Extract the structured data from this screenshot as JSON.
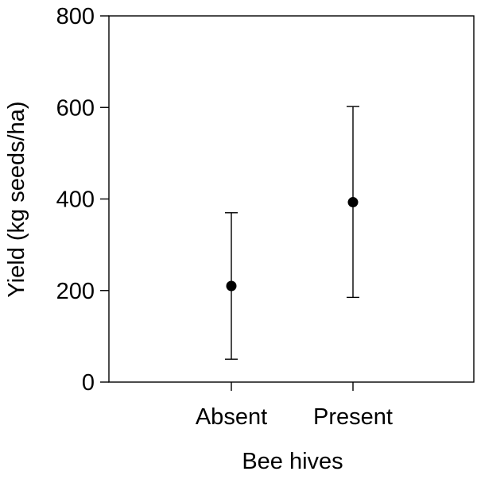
{
  "chart_data": {
    "type": "scatter",
    "title": "",
    "xlabel": "Bee hives",
    "ylabel": "Yield (kg seeds/ha)",
    "categories": [
      "Absent",
      "Present"
    ],
    "values": [
      210,
      393
    ],
    "error_low": [
      50,
      185
    ],
    "error_high": [
      370,
      602
    ],
    "ylim": [
      0,
      800
    ],
    "yticks": [
      0,
      200,
      400,
      600,
      800
    ],
    "ytick_labels": [
      "0",
      "200",
      "400",
      "600",
      "800"
    ],
    "grid": false,
    "legend": "none",
    "colors": {
      "marker": "#000000",
      "axis": "#000000",
      "background": "#ffffff"
    }
  }
}
